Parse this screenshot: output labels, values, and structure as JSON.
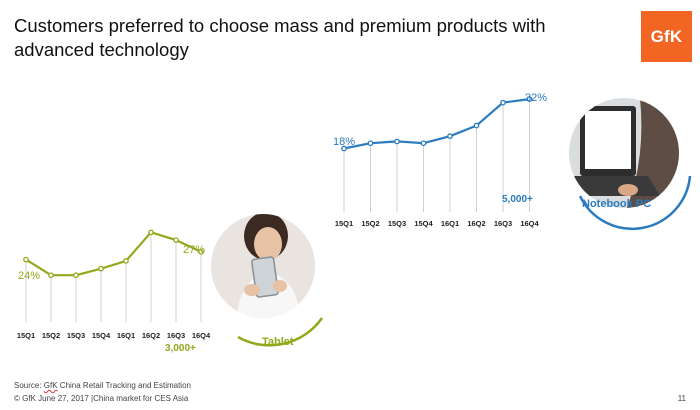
{
  "title": "Customers preferred to choose mass and premium products with advanced technology",
  "logo": {
    "text": "GfK",
    "color": "#f26522"
  },
  "colors": {
    "tablet": "#8faa1b",
    "notebook": "#2b7bbf"
  },
  "chart_data": [
    {
      "type": "line",
      "name": "tablet",
      "categories": [
        "15Q1",
        "15Q2",
        "15Q3",
        "15Q4",
        "16Q1",
        "16Q2",
        "16Q3",
        "16Q4"
      ],
      "values": [
        24,
        18,
        18,
        20.5,
        23.5,
        34.5,
        31.5,
        27
      ],
      "labels": {
        "first": "24%",
        "last": "27%"
      },
      "count_label": "3,000+",
      "category_label": "Tablet",
      "ylim": [
        0,
        40
      ]
    },
    {
      "type": "line",
      "name": "notebook",
      "categories": [
        "15Q1",
        "15Q2",
        "15Q3",
        "15Q4",
        "16Q1",
        "16Q2",
        "16Q3",
        "16Q4"
      ],
      "values": [
        18,
        19.5,
        20,
        19.5,
        21.5,
        24.5,
        31,
        32
      ],
      "labels": {
        "first": "18%",
        "last": "32%"
      },
      "count_label": "5,000+",
      "category_label": "Notebook PC",
      "ylim": [
        0,
        36
      ]
    }
  ],
  "footer": {
    "source_prefix": "Source: ",
    "source_gfk": "GfK",
    "source_rest": " China Retail Tracking and Estimation",
    "copyright": "© GfK June 27, 2017 |China market for CES Asia",
    "page": "11"
  }
}
